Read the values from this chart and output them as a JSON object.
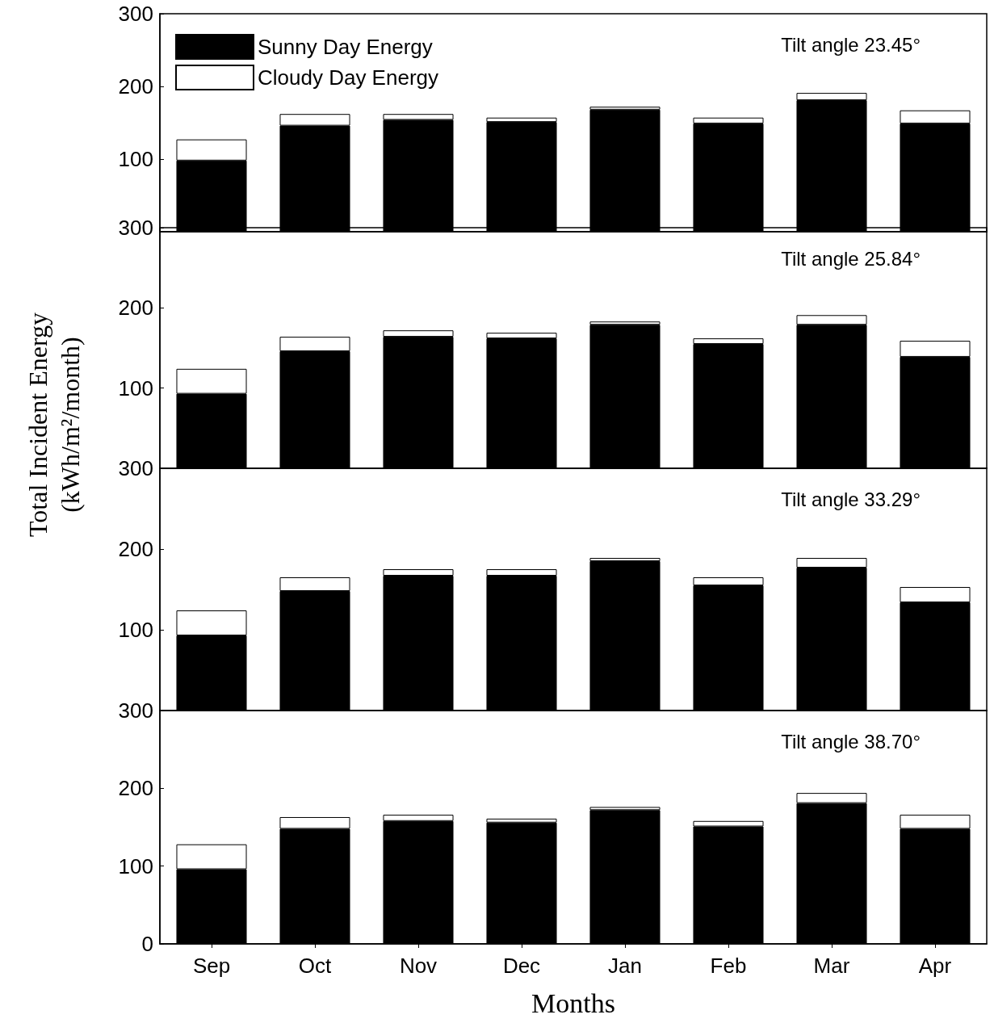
{
  "chart_data": [
    {
      "type": "bar",
      "stacked": true,
      "series": [
        {
          "name": "Sunny Day Energy",
          "color": "#000000",
          "values": [
            98,
            146,
            154,
            151,
            168,
            149,
            181,
            149
          ]
        },
        {
          "name": "Cloudy Day Energy",
          "color": "#ffffff",
          "values": [
            29,
            16,
            8,
            6,
            4,
            8,
            10,
            18
          ]
        }
      ],
      "ylim": [
        0,
        300
      ],
      "yticks": [
        100,
        200,
        300
      ],
      "tick_labels": "y",
      "legend": "top left",
      "grid": false,
      "categories": [
        null,
        null,
        null,
        null,
        null,
        null,
        null,
        null
      ],
      "annotations": [
        "Tilt angle 23.45°"
      ]
    },
    {
      "type": "bar",
      "stacked": true,
      "series": [
        {
          "color": "#000000",
          "values": [
            93,
            146,
            164,
            162,
            179,
            155,
            179,
            139
          ]
        },
        {
          "color": "#ffffff",
          "values": [
            31,
            18,
            8,
            7,
            4,
            7,
            12,
            20
          ]
        }
      ],
      "ylim": [
        0,
        300
      ],
      "yticks": [
        100,
        200,
        300
      ],
      "tick_labels": "y",
      "grid": false,
      "categories": [
        null,
        null,
        null,
        null,
        null,
        null,
        null,
        null
      ],
      "ylabel": "Total Incident Energy (kWh/m²/month)",
      "annotations": [
        "Tilt angle 25.84°"
      ]
    },
    {
      "type": "bar",
      "stacked": true,
      "series": [
        {
          "color": "#000000",
          "values": [
            93,
            148,
            167,
            167,
            185,
            155,
            177,
            134
          ]
        },
        {
          "color": "#ffffff",
          "values": [
            31,
            17,
            8,
            8,
            4,
            10,
            12,
            19
          ]
        }
      ],
      "ylim": [
        0,
        300
      ],
      "yticks": [
        100,
        200,
        300
      ],
      "tick_labels": "y",
      "grid": false,
      "categories": [
        null,
        null,
        null,
        null,
        null,
        null,
        null,
        null
      ],
      "annotations": [
        "Tilt angle 33.29°"
      ]
    },
    {
      "type": "bar",
      "stacked": true,
      "categories": [
        "Sep",
        "Oct",
        "Nov",
        "Dec",
        "Jan",
        "Feb",
        "Mar",
        "Apr"
      ],
      "series": [
        {
          "color": "#000000",
          "values": [
            96,
            148,
            158,
            156,
            172,
            151,
            181,
            148
          ]
        },
        {
          "color": "#ffffff",
          "values": [
            32,
            15,
            8,
            5,
            4,
            7,
            13,
            18
          ]
        }
      ],
      "ylim": [
        0,
        300
      ],
      "yticks": [
        0,
        100,
        200,
        300
      ],
      "grid": false,
      "xlabel": "Months",
      "annotations": [
        "Tilt angle 38.70°"
      ]
    }
  ]
}
